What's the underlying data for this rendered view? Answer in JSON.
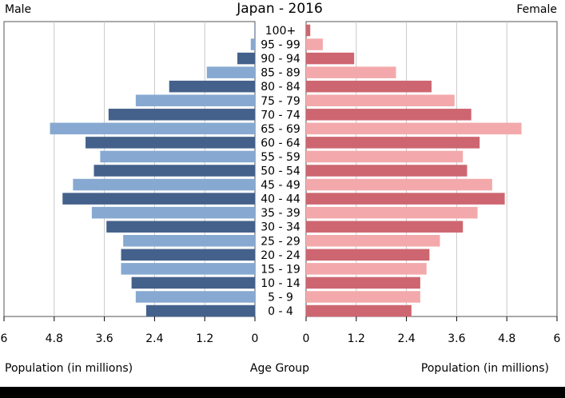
{
  "chart_data": {
    "type": "bar",
    "title": "Japan - 2016",
    "male_label": "Male",
    "female_label": "Female",
    "xlabel_left": "Population (in millions)",
    "xlabel_center": "Age Group",
    "xlabel_right": "Population (in millions)",
    "xlim": [
      0,
      6
    ],
    "ticks": [
      "6",
      "4.8",
      "3.6",
      "2.4",
      "1.2",
      "0",
      "0",
      "1.2",
      "2.4",
      "3.6",
      "4.8",
      "6"
    ],
    "tick_values_left": [
      6,
      4.8,
      3.6,
      2.4,
      1.2,
      0
    ],
    "tick_values_right": [
      0,
      1.2,
      2.4,
      3.6,
      4.8,
      6
    ],
    "categories": [
      "100+",
      "95 - 99",
      "90 - 94",
      "85 - 89",
      "80 - 84",
      "75 - 79",
      "70 - 74",
      "65 - 69",
      "60 - 64",
      "55 - 59",
      "50 - 54",
      "45 - 49",
      "40 - 44",
      "35 - 39",
      "30 - 34",
      "25 - 29",
      "20 - 24",
      "15 - 19",
      "10 - 14",
      "5 - 9",
      "0 - 4"
    ],
    "series": [
      {
        "values": [
          0.01,
          0.1,
          0.42,
          1.15,
          2.05,
          2.85,
          3.5,
          4.9,
          4.05,
          3.7,
          3.85,
          4.35,
          4.6,
          3.9,
          3.55,
          3.15,
          3.2,
          3.2,
          2.95,
          2.85,
          2.6
        ]
      },
      {
        "values": [
          0.1,
          0.4,
          1.15,
          2.15,
          3.0,
          3.55,
          3.95,
          5.15,
          4.15,
          3.75,
          3.85,
          4.45,
          4.75,
          4.1,
          3.75,
          3.2,
          2.95,
          2.88,
          2.73,
          2.73,
          2.52
        ]
      }
    ],
    "colors": {
      "male_dark": "#44618b",
      "male_light": "#87a9d1",
      "female_dark": "#cd6670",
      "female_light": "#f3a9ab",
      "grid": "#c8c8c8",
      "frame": "#555555"
    }
  }
}
